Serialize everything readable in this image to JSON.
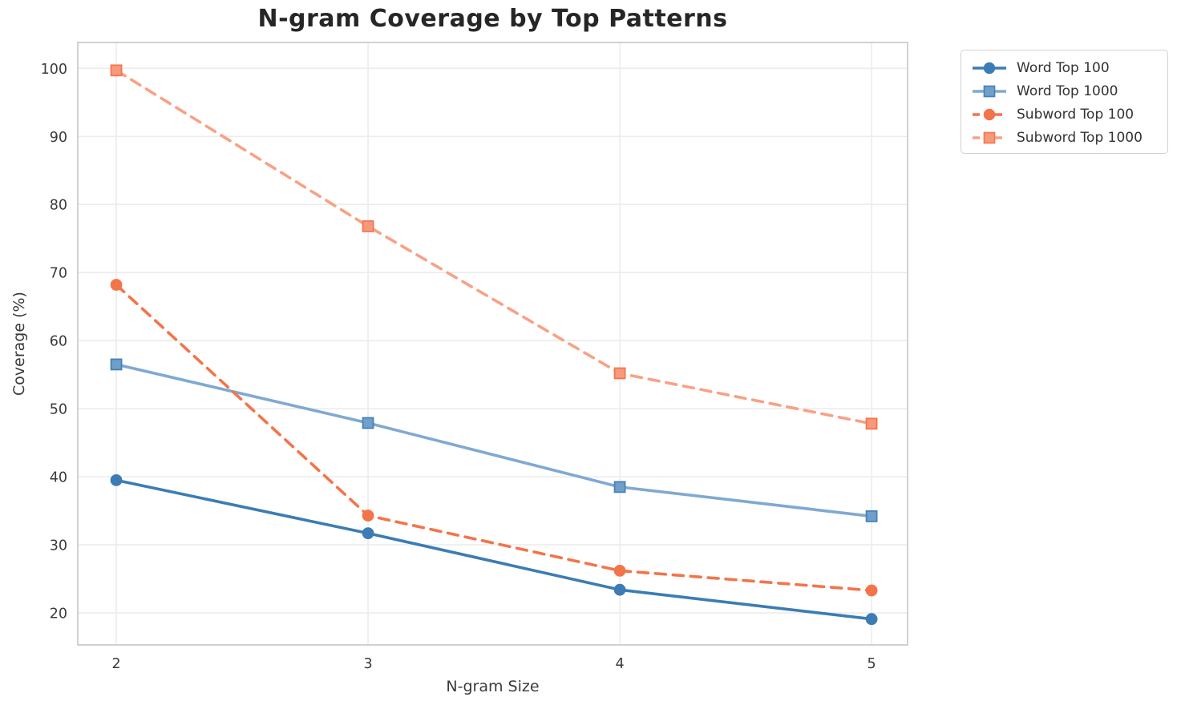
{
  "title": "N-gram Coverage by Top Patterns",
  "chart_data": {
    "type": "line",
    "title": "N-gram Coverage by Top Patterns",
    "xlabel": "N-gram Size",
    "ylabel": "Coverage (%)",
    "x": [
      2,
      3,
      4,
      5
    ],
    "xticks": [
      2,
      3,
      4,
      5
    ],
    "yticks": [
      20,
      30,
      40,
      50,
      60,
      70,
      80,
      90,
      100
    ],
    "xlim": [
      1.847,
      5.143
    ],
    "ylim": [
      15.3,
      103.8
    ],
    "grid": true,
    "legend_position": "outside upper right",
    "series": [
      {
        "name": "Word Top 100",
        "values": [
          39.5,
          31.7,
          23.4,
          19.1
        ],
        "color": "#3c7cb4",
        "marker_fill": "#3c7cb4",
        "marker_edge": "#3c7cb4",
        "line_style": "solid",
        "marker": "circle"
      },
      {
        "name": "Word Top 1000",
        "values": [
          56.5,
          47.9,
          38.5,
          34.2
        ],
        "color": "#7fa9d2",
        "marker_fill": "#6fa0cc",
        "marker_edge": "#4a80b4",
        "line_style": "solid",
        "marker": "square"
      },
      {
        "name": "Subword Top 100",
        "values": [
          68.2,
          34.3,
          26.2,
          23.3
        ],
        "color": "#f4744a",
        "marker_fill": "#f4744a",
        "marker_edge": "#f4744a",
        "line_style": "dashed",
        "marker": "circle"
      },
      {
        "name": "Subword Top 1000",
        "values": [
          99.7,
          76.8,
          55.2,
          47.8
        ],
        "color": "#f9a185",
        "marker_fill": "#f8997c",
        "marker_edge": "#f4764e",
        "line_style": "dashed",
        "marker": "square"
      }
    ],
    "style": {
      "grid_color": "#ececec",
      "spine_color": "#cccccc",
      "background": "#ffffff"
    }
  }
}
